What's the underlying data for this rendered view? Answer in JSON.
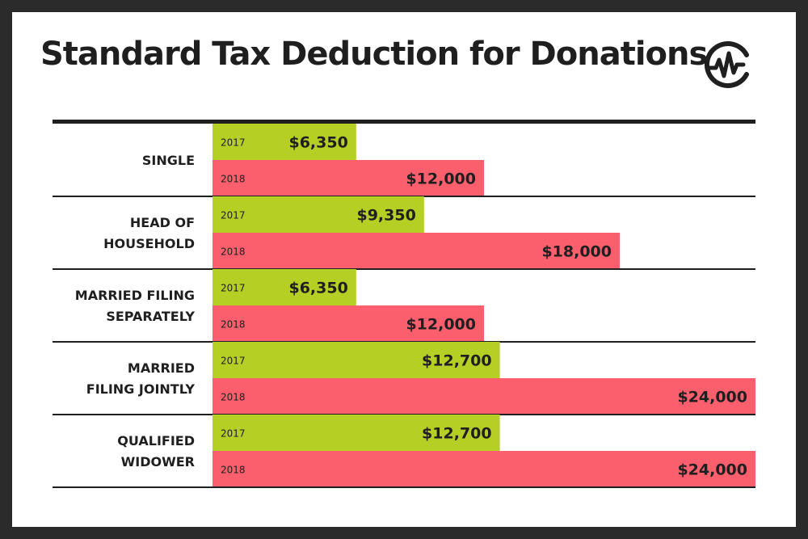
{
  "title": "Standard Tax Deduction for Donations",
  "colors": {
    "y2017": "#b5cf24",
    "y2018": "#fb5f6e",
    "text": "#1f1f1f",
    "background": "#ffffff",
    "frame": "#2b2b2b"
  },
  "logo": {
    "icon": "waveform-circle-logo"
  },
  "chart_data": {
    "type": "bar",
    "orientation": "horizontal",
    "categories": [
      [
        "SINGLE"
      ],
      [
        "HEAD OF",
        "HOUSEHOLD"
      ],
      [
        "MARRIED FILING",
        "SEPARATELY"
      ],
      [
        "MARRIED",
        "FILING JOINTLY"
      ],
      [
        "QUALIFIED",
        "WIDOWER"
      ]
    ],
    "series": [
      {
        "name": "2017",
        "values": [
          6350,
          9350,
          6350,
          12700,
          12700
        ],
        "labels": [
          "$6,350",
          "$9,350",
          "$6,350",
          "$12,700",
          "$12,700"
        ]
      },
      {
        "name": "2018",
        "values": [
          12000,
          18000,
          12000,
          24000,
          24000
        ],
        "labels": [
          "$12,000",
          "$18,000",
          "$12,000",
          "$24,000",
          "$24,000"
        ]
      }
    ],
    "xlim": [
      0,
      24000
    ],
    "grid": false,
    "legend": "none"
  }
}
